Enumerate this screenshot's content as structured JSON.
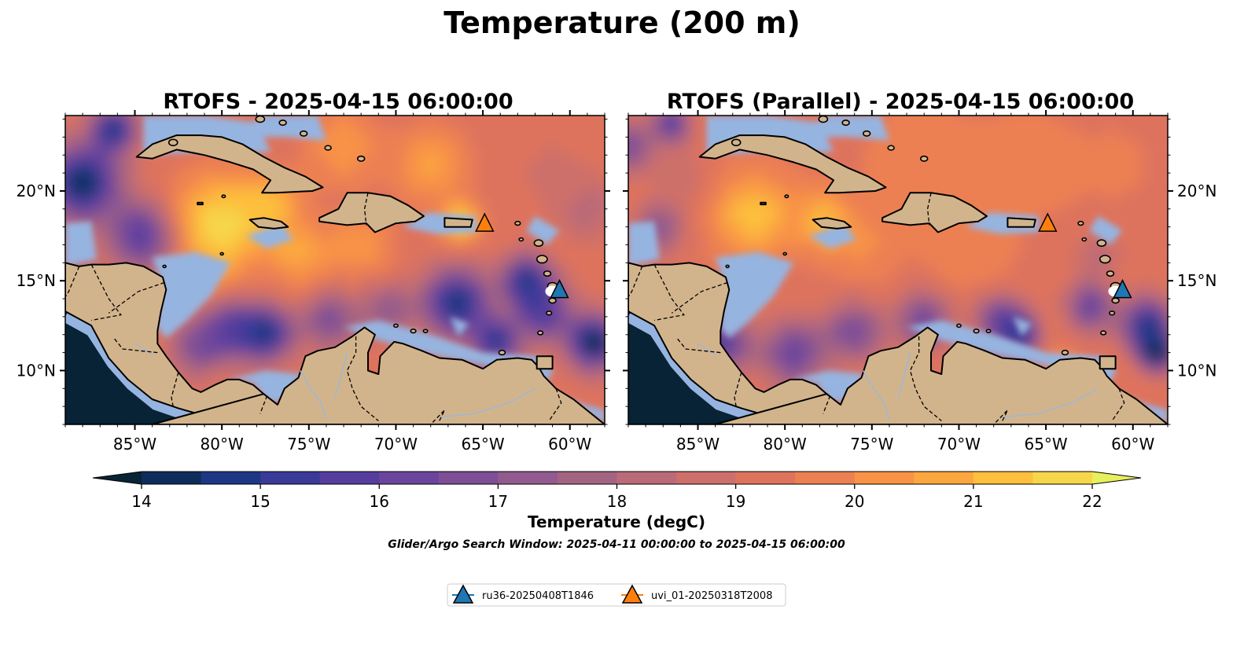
{
  "figure": {
    "title": "Temperature (200 m)",
    "footnote": "Glider/Argo Search Window: 2025-04-11 00:00:00 to 2025-04-15 06:00:00"
  },
  "colors": {
    "land": "#d2b48c",
    "shelf": "#96b4e0",
    "deep": "#082335",
    "coast": "#000000",
    "river": "#9fb7d6"
  },
  "panels": [
    {
      "title": "RTOFS - 2025-04-15 06:00:00",
      "lat_label_side": "left",
      "variant": "main"
    },
    {
      "title": "RTOFS (Parallel) - 2025-04-15 06:00:00",
      "lat_label_side": "right",
      "variant": "parallel"
    }
  ],
  "map": {
    "lon_range": [
      -89,
      -58
    ],
    "lat_range": [
      7,
      24.2
    ],
    "lon_ticks": [
      -85,
      -80,
      -75,
      -70,
      -65,
      -60
    ],
    "lon_tick_labels": [
      "85°W",
      "80°W",
      "75°W",
      "70°W",
      "65°W",
      "60°W"
    ],
    "lat_ticks": [
      10,
      15,
      20
    ],
    "lat_tick_labels": [
      "10°N",
      "15°N",
      "20°N"
    ]
  },
  "colorbar": {
    "label": "Temperature (degC)",
    "min": 14,
    "max": 22,
    "step": 0.5,
    "extend": "both",
    "ticks": [
      14,
      15,
      16,
      17,
      18,
      19,
      20,
      21,
      22
    ],
    "tick_labels": [
      "14",
      "15",
      "16",
      "17",
      "18",
      "19",
      "20",
      "21",
      "22"
    ],
    "bins": [
      "#082335",
      "#0e2d5a",
      "#1d3784",
      "#3a3a99",
      "#553d9d",
      "#6b459d",
      "#7e4e96",
      "#925a8e",
      "#a56382",
      "#bb6b78",
      "#cd6f6b",
      "#de735d",
      "#ec8052",
      "#f89247",
      "#fba73f",
      "#fdbf3d",
      "#f6d64a",
      "#e6ef5e"
    ]
  },
  "gliders": [
    {
      "name": "ru36-20250408T1846",
      "color": "#1f77b4",
      "lon": -60.6,
      "lat": 14.5
    },
    {
      "name": "uvi_01-20250318T2008",
      "color": "#ff7f0e",
      "lon": -64.9,
      "lat": 18.2
    }
  ]
}
